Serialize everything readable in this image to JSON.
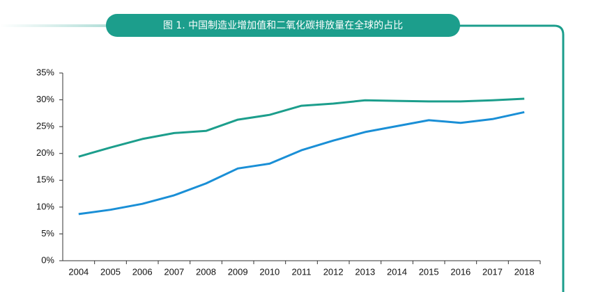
{
  "chart_data": {
    "type": "line",
    "title": "图 1. 中国制造业增加值和二氧化碳排放量在全球的占比",
    "categories": [
      "2004",
      "2005",
      "2006",
      "2007",
      "2008",
      "2009",
      "2010",
      "2011",
      "2012",
      "2013",
      "2014",
      "2015",
      "2016",
      "2017",
      "2018"
    ],
    "series": [
      {
        "color": "#1c9e8c",
        "values": [
          19.4,
          21.1,
          22.7,
          23.8,
          24.2,
          26.3,
          27.2,
          28.9,
          29.3,
          29.9,
          29.8,
          29.7,
          29.7,
          29.9,
          30.2
        ]
      },
      {
        "color": "#1a8fd6",
        "values": [
          8.7,
          9.5,
          10.6,
          12.2,
          14.4,
          17.2,
          18.1,
          20.6,
          22.4,
          24.0,
          25.1,
          26.2,
          25.7,
          26.4,
          27.7
        ]
      }
    ],
    "ylim": [
      0,
      35
    ],
    "yticks": [
      {
        "value": 0,
        "label": "0%"
      },
      {
        "value": 5,
        "label": "5%"
      },
      {
        "value": 10,
        "label": "10%"
      },
      {
        "value": 15,
        "label": "15%"
      },
      {
        "value": 20,
        "label": "20%"
      },
      {
        "value": 25,
        "label": "25%"
      },
      {
        "value": 30,
        "label": "30%"
      },
      {
        "value": 35,
        "label": "35%"
      }
    ],
    "grid": false
  }
}
